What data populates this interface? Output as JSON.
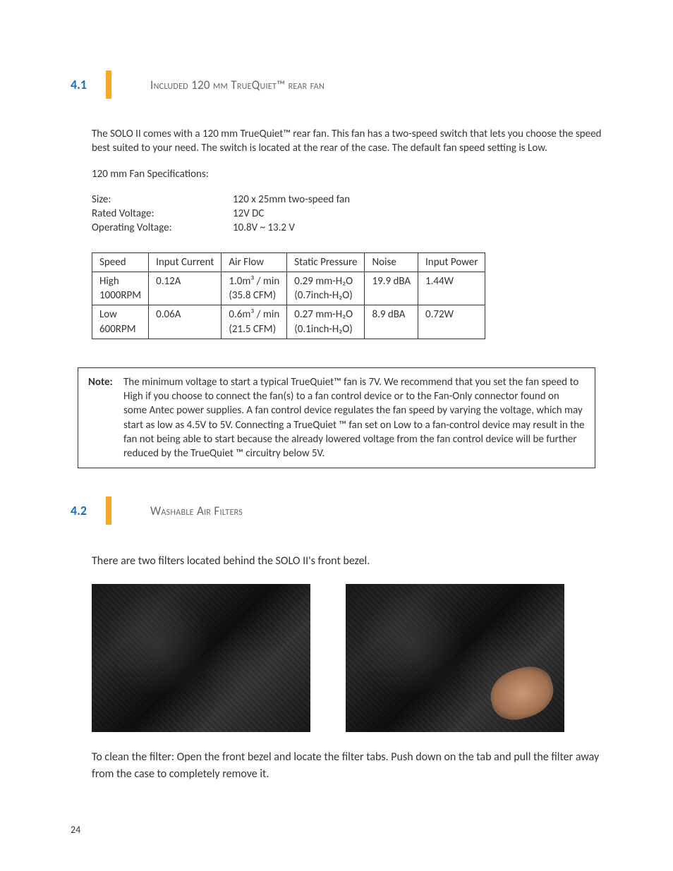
{
  "section41": {
    "number": "4.1",
    "title": "Included 120 mm TrueQuiet™ rear fan",
    "intro": "The SOLO II comes with a 120 mm TrueQuiet™ rear fan. This fan has a two-speed switch that lets you choose the speed best suited to your need. The switch is located at the rear of the case. The default fan speed setting is Low.",
    "specs_heading": "120 mm Fan Specifications:",
    "specs": [
      {
        "label": "Size:",
        "value": "120 x 25mm two-speed fan"
      },
      {
        "label": "Rated Voltage:",
        "value": "12V DC"
      },
      {
        "label": "Operating Voltage:",
        "value": "10.8V ~ 13.2 V"
      }
    ],
    "table": {
      "headers": [
        "Speed",
        "Input Current",
        "Air Flow",
        "Static Pressure",
        "Noise",
        "Input Power"
      ],
      "rows": [
        {
          "speed_l1": "High",
          "speed_l2": "1000RPM",
          "current": "0.12A",
          "airflow_l1": "1.0m³ / min",
          "airflow_l2": "(35.8 CFM)",
          "pressure_l1": "0.29 mm-H₂O",
          "pressure_l2": "(0.7inch-H₂O)",
          "noise": "19.9 dBA",
          "power": "1.44W"
        },
        {
          "speed_l1": "Low",
          "speed_l2": "600RPM",
          "current": "0.06A",
          "airflow_l1": "0.6m³ / min",
          "airflow_l2": "(21.5 CFM)",
          "pressure_l1": "0.27 mm-H₂O",
          "pressure_l2": "(0.1inch-H₂O)",
          "noise": "8.9 dBA",
          "power": "0.72W"
        }
      ]
    },
    "note_label": "Note:",
    "note_text": "The minimum voltage to start a typical TrueQuiet™ fan is 7V. We recommend that you set the fan speed to High if you choose to connect the fan(s) to a fan control device or to the Fan-Only connector found on some Antec power supplies.  A fan control device regulates the fan speed by varying the voltage, which may start as low as 4.5V to 5V. Connecting a TrueQuiet ™ fan set on Low to a fan-control device may result in the fan not being able to start because the already lowered voltage from the fan control device will be further reduced by the TrueQuiet ™ circuitry below 5V."
  },
  "section42": {
    "number": "4.2",
    "title": "Washable Air Filters",
    "intro": "There are two filters located behind the SOLO II's front bezel.",
    "outro": "To clean the filter: Open the front bezel and locate the filter tabs. Push down on the tab and pull the filter away from the case to completely remove it."
  },
  "page_number": "24",
  "colors": {
    "heading_number": "#1f6db5",
    "accent_bar": "#f9a825",
    "text": "#333333",
    "heading_text": "#666666",
    "border": "#333333",
    "background": "#ffffff"
  }
}
